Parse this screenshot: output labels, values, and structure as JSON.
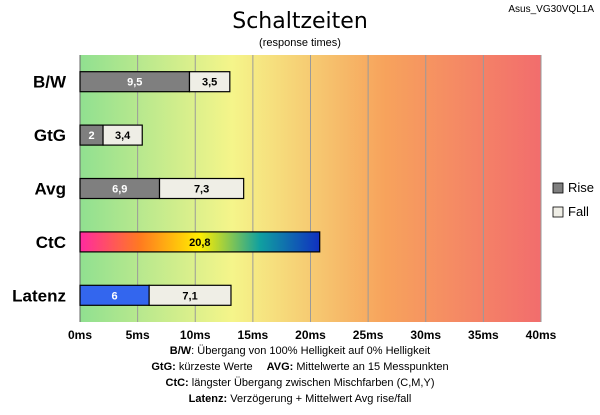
{
  "chart_data": {
    "type": "bar",
    "orientation": "horizontal",
    "stacked": true,
    "title": "Schaltzeiten",
    "subtitle": "(response times)",
    "model": "Asus_VG30VQL1A",
    "categories": [
      "B/W",
      "GtG",
      "Avg",
      "CtC",
      "Latenz"
    ],
    "series": [
      {
        "name": "Rise",
        "values": [
          9.5,
          2,
          6.9,
          null,
          6
        ],
        "labels": [
          "9,5",
          "2",
          "6,9",
          "",
          "6"
        ],
        "color": "#7f7f7f"
      },
      {
        "name": "Fall",
        "values": [
          3.5,
          3.4,
          7.3,
          null,
          7.1
        ],
        "labels": [
          "3,5",
          "3,4",
          "7,3",
          "",
          "7,1"
        ],
        "color": "#efeee6"
      }
    ],
    "single_bars": [
      {
        "category": "CtC",
        "value": 20.8,
        "label": "20,8",
        "style": "rainbow"
      }
    ],
    "latenz_rise_color": "#3366ee",
    "x_ticks": [
      "0ms",
      "5ms",
      "10ms",
      "15ms",
      "20ms",
      "25ms",
      "30ms",
      "35ms",
      "40ms"
    ],
    "xlim": [
      0,
      40
    ],
    "grid": true,
    "legend_position": "right",
    "background_gradient": [
      "#90e090",
      "#f5f58a",
      "#f7a35c",
      "#f26d6d"
    ],
    "notes": [
      {
        "b1": "B/W",
        "t1": ":  Übergang von 100% Helligkeit auf 0% Helligkeit",
        "b2": "",
        "t2": ""
      },
      {
        "b1": "GtG:",
        "t1": " kürzeste  Werte",
        "b2": "AVG:",
        "t2": " Mittelwerte  an 15 Messpunkten"
      },
      {
        "b1": "CtC:",
        "t1": " längster Übergang  zwischen Mischfarben  (C,M,Y)",
        "b2": "",
        "t2": ""
      },
      {
        "b1": "Latenz:",
        "t1": " Verzögerung  + Mittelwert Avg rise/fall",
        "b2": "",
        "t2": ""
      }
    ]
  }
}
